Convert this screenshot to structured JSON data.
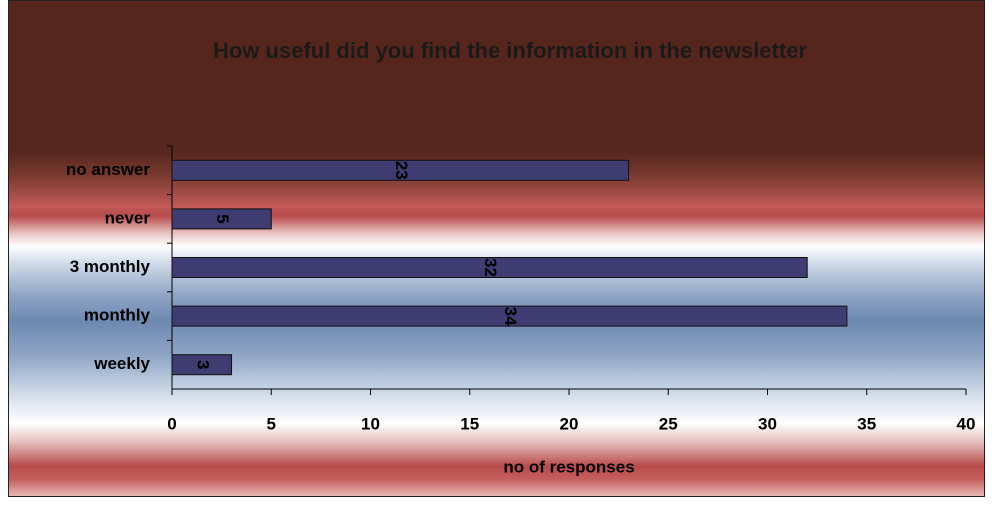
{
  "chart_data": {
    "type": "hbar",
    "title": "How useful did you find the information in the newsletter",
    "x_label": "no of responses",
    "categories": [
      "no answer",
      "never",
      "3 monthly",
      "monthly",
      "weekly"
    ],
    "values": [
      23,
      5,
      32,
      34,
      3
    ],
    "color": "#3f3c72",
    "xlim": [
      0,
      40
    ],
    "xticks": [
      0,
      5,
      10,
      15,
      20,
      25,
      30,
      35,
      40
    ],
    "grid": false
  }
}
